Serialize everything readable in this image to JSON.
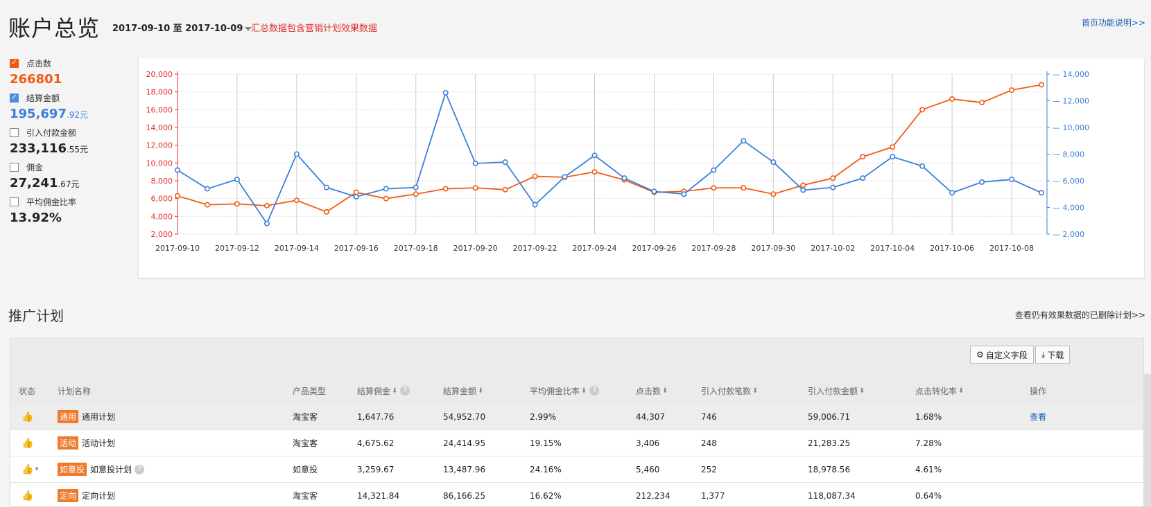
{
  "header": {
    "title": "账户总览",
    "date_start": "2017-09-10",
    "date_sep": " 至 ",
    "date_end": "2017-10-09",
    "note": "汇总数据包含营销计划效果数据",
    "help_link": "首页功能说明>>"
  },
  "metrics": [
    {
      "label": "点击数",
      "checked": true,
      "value_main": "266801",
      "value_small": "",
      "color": "#f05a12"
    },
    {
      "label": "结算金额",
      "checked": true,
      "value_main": "195,697",
      "value_small": ".92元",
      "color": "#3a7fd6"
    },
    {
      "label": "引入付款金额",
      "checked": false,
      "value_main": "233,116",
      "value_small": ".55元",
      "color": "#222222"
    },
    {
      "label": "佣金",
      "checked": false,
      "value_main": "27,241",
      "value_small": ".67元",
      "color": "#222222"
    },
    {
      "label": "平均佣金比率",
      "checked": false,
      "value_main": "13.92%",
      "value_small": "",
      "color": "#222222"
    }
  ],
  "chart_data": {
    "type": "line",
    "x": [
      "2017-09-10",
      "2017-09-11",
      "2017-09-12",
      "2017-09-13",
      "2017-09-14",
      "2017-09-15",
      "2017-09-16",
      "2017-09-17",
      "2017-09-18",
      "2017-09-19",
      "2017-09-20",
      "2017-09-21",
      "2017-09-22",
      "2017-09-23",
      "2017-09-24",
      "2017-09-25",
      "2017-09-26",
      "2017-09-27",
      "2017-09-28",
      "2017-09-29",
      "2017-09-30",
      "2017-10-01",
      "2017-10-02",
      "2017-10-03",
      "2017-10-04",
      "2017-10-05",
      "2017-10-06",
      "2017-10-07",
      "2017-10-08",
      "2017-10-09"
    ],
    "x_tick_labels": [
      "2017-09-10",
      "2017-09-12",
      "2017-09-14",
      "2017-09-16",
      "2017-09-18",
      "2017-09-20",
      "2017-09-22",
      "2017-09-24",
      "2017-09-26",
      "2017-09-28",
      "2017-09-30",
      "2017-10-02",
      "2017-10-04",
      "2017-10-06",
      "2017-10-08"
    ],
    "y_left": {
      "ticks": [
        "2,000",
        "4,000",
        "6,000",
        "8,000",
        "10,000",
        "12,000",
        "14,000",
        "16,000",
        "18,000",
        "20,000"
      ],
      "min": 2000,
      "max": 20000,
      "color": "#e02c2c"
    },
    "y_right": {
      "ticks": [
        "2,000",
        "4,000",
        "6,000",
        "8,000",
        "10,000",
        "12,000",
        "14,000"
      ],
      "min": 2000,
      "max": 14000,
      "color": "#3a7fd6"
    },
    "grid": true,
    "series": [
      {
        "name": "点击数",
        "axis": "left",
        "color": "#f05a12",
        "values": [
          6300,
          5300,
          5400,
          5200,
          5800,
          4500,
          6700,
          6000,
          6500,
          7100,
          7200,
          7000,
          8500,
          8400,
          9000,
          8100,
          6700,
          6800,
          7200,
          7200,
          6500,
          7500,
          8300,
          10700,
          11800,
          16000,
          17200,
          16800,
          18200,
          18800
        ]
      },
      {
        "name": "结算金额",
        "axis": "right",
        "color": "#3a7fd6",
        "values": [
          6800,
          5400,
          6100,
          2800,
          8000,
          5500,
          4800,
          5400,
          5500,
          12600,
          7300,
          7400,
          4200,
          6300,
          7900,
          6200,
          5200,
          5000,
          6800,
          9000,
          7400,
          5300,
          5500,
          6200,
          7800,
          7100,
          5100,
          5900,
          6100,
          5100
        ]
      }
    ]
  },
  "section": {
    "title": "推广计划",
    "deleted_link": "查看仍有效果数据的已删除计划>>"
  },
  "toolbar": {
    "custom_fields": "自定义字段",
    "download": "下载"
  },
  "table": {
    "headers": [
      "状态",
      "计划名称",
      "产品类型",
      "结算佣金",
      "结算金额",
      "平均佣金比率",
      "点击数",
      "引入付款笔数",
      "引入付款金额",
      "点击转化率",
      "操作"
    ],
    "rows": [
      {
        "badge": "通用",
        "name": "通用计划",
        "type": "淘宝客",
        "commission": "1,647.76",
        "amount": "54,952.70",
        "rate": "2.99%",
        "clicks": "44,307",
        "orders": "746",
        "pay_amount": "59,006.71",
        "cvr": "1.68%",
        "op": "查看"
      },
      {
        "badge": "活动",
        "name": "活动计划",
        "type": "淘宝客",
        "commission": "4,675.62",
        "amount": "24,414.95",
        "rate": "19.15%",
        "clicks": "3,406",
        "orders": "248",
        "pay_amount": "21,283.25",
        "cvr": "7.28%",
        "op": ""
      },
      {
        "badge": "如意投",
        "name": "如意投计划",
        "type": "如意投",
        "commission": "3,259.67",
        "amount": "13,487.96",
        "rate": "24.16%",
        "clicks": "5,460",
        "orders": "252",
        "pay_amount": "18,978.56",
        "cvr": "4.61%",
        "op": ""
      },
      {
        "badge": "定向",
        "name": "定向计划",
        "type": "淘宝客",
        "commission": "14,321.84",
        "amount": "86,166.25",
        "rate": "16.62%",
        "clicks": "212,234",
        "orders": "1,377",
        "pay_amount": "118,087.34",
        "cvr": "0.64%",
        "op": ""
      }
    ]
  }
}
